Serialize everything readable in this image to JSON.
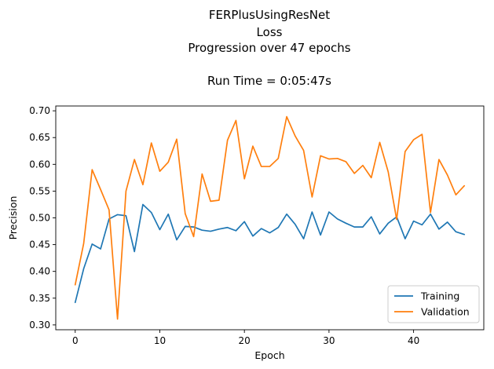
{
  "chart_data": {
    "type": "line",
    "title_lines": [
      "FERPlusUsingResNet",
      "Loss",
      "Progression over 47 epochs",
      "",
      "Run Time = 0:05:47s"
    ],
    "xlabel": "Epoch",
    "ylabel": "Precision",
    "xlim": [
      -2.3,
      48.3
    ],
    "ylim": [
      0.291,
      0.709
    ],
    "xticks": [
      0,
      10,
      20,
      30,
      40
    ],
    "yticks": [
      0.3,
      0.35,
      0.4,
      0.45,
      0.5,
      0.55,
      0.6,
      0.65,
      0.7
    ],
    "ytick_labels": [
      "0.30",
      "0.35",
      "0.40",
      "0.45",
      "0.50",
      "0.55",
      "0.60",
      "0.65",
      "0.70"
    ],
    "grid": false,
    "legend_position": "lower-right",
    "series": [
      {
        "name": "Training",
        "color": "#1f77b4",
        "x": [
          0,
          1,
          2,
          3,
          4,
          5,
          6,
          7,
          8,
          9,
          10,
          11,
          12,
          13,
          14,
          15,
          16,
          17,
          18,
          19,
          20,
          21,
          22,
          23,
          24,
          25,
          26,
          27,
          28,
          29,
          30,
          31,
          32,
          33,
          34,
          35,
          36,
          37,
          38,
          39,
          40,
          41,
          42,
          43,
          44,
          45,
          46
        ],
        "values": [
          0.342,
          0.405,
          0.451,
          0.442,
          0.498,
          0.506,
          0.504,
          0.437,
          0.525,
          0.51,
          0.478,
          0.507,
          0.459,
          0.484,
          0.483,
          0.477,
          0.475,
          0.479,
          0.482,
          0.476,
          0.493,
          0.466,
          0.48,
          0.472,
          0.482,
          0.507,
          0.488,
          0.461,
          0.511,
          0.468,
          0.511,
          0.498,
          0.49,
          0.483,
          0.483,
          0.502,
          0.47,
          0.49,
          0.502,
          0.461,
          0.494,
          0.487,
          0.507,
          0.479,
          0.492,
          0.474,
          0.469
        ]
      },
      {
        "name": "Validation",
        "color": "#ff7f0e",
        "x": [
          0,
          1,
          2,
          3,
          4,
          5,
          6,
          7,
          8,
          9,
          10,
          11,
          12,
          13,
          14,
          15,
          16,
          17,
          18,
          19,
          20,
          21,
          22,
          23,
          24,
          25,
          26,
          27,
          28,
          29,
          30,
          31,
          32,
          33,
          34,
          35,
          36,
          37,
          38,
          39,
          40,
          41,
          42,
          43,
          44,
          45,
          46
        ],
        "values": [
          0.375,
          0.452,
          0.59,
          0.553,
          0.515,
          0.311,
          0.55,
          0.609,
          0.562,
          0.64,
          0.587,
          0.604,
          0.647,
          0.508,
          0.465,
          0.582,
          0.531,
          0.533,
          0.645,
          0.682,
          0.573,
          0.634,
          0.596,
          0.596,
          0.611,
          0.689,
          0.653,
          0.626,
          0.539,
          0.616,
          0.61,
          0.611,
          0.605,
          0.583,
          0.598,
          0.575,
          0.641,
          0.586,
          0.497,
          0.624,
          0.646,
          0.656,
          0.51,
          0.609,
          0.58,
          0.543,
          0.56
        ]
      }
    ]
  }
}
